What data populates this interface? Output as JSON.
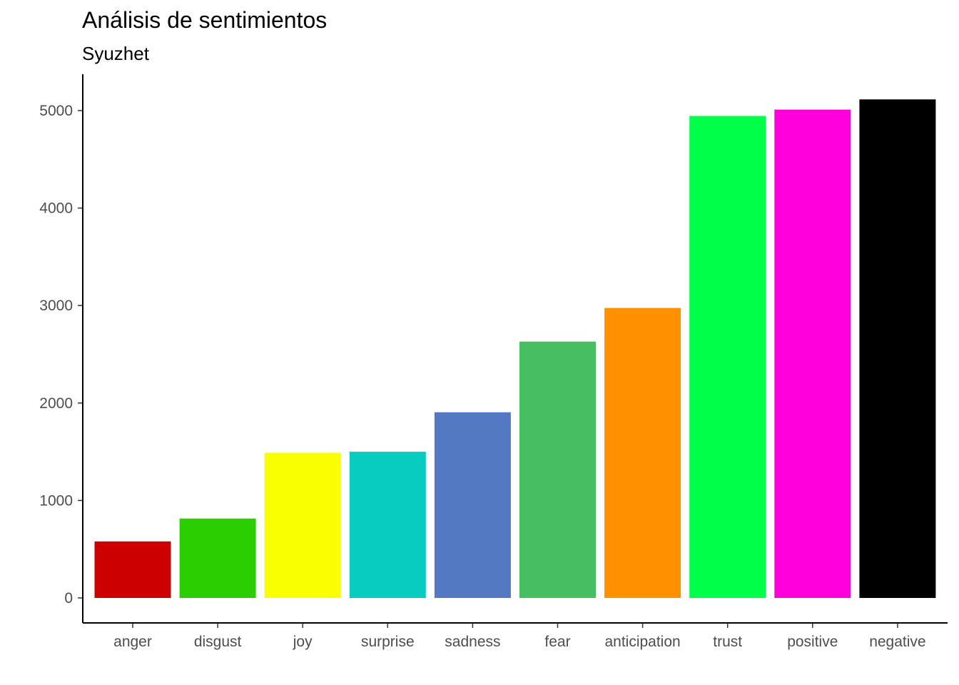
{
  "chart_data": {
    "type": "bar",
    "title": "Análisis de sentimientos",
    "subtitle": "Syuzhet",
    "xlabel": "",
    "ylabel": "",
    "categories": [
      "anger",
      "disgust",
      "joy",
      "surprise",
      "sadness",
      "fear",
      "anticipation",
      "trust",
      "positive",
      "negative"
    ],
    "values": [
      580,
      815,
      1490,
      1500,
      1905,
      2630,
      2975,
      4945,
      5010,
      5115
    ],
    "colors": [
      "#CC0000",
      "#2BCE00",
      "#FAFF00",
      "#08CCC0",
      "#5279C2",
      "#46BE61",
      "#FF9000",
      "#00FF48",
      "#FF00DD",
      "#000000"
    ],
    "ylim": [
      0,
      5360
    ],
    "yticks": [
      0,
      1000,
      2000,
      3000,
      4000,
      5000
    ],
    "ytick_labels": [
      "0",
      "1000",
      "2000",
      "3000",
      "4000",
      "5000"
    ],
    "grid": false,
    "legend": "none"
  }
}
